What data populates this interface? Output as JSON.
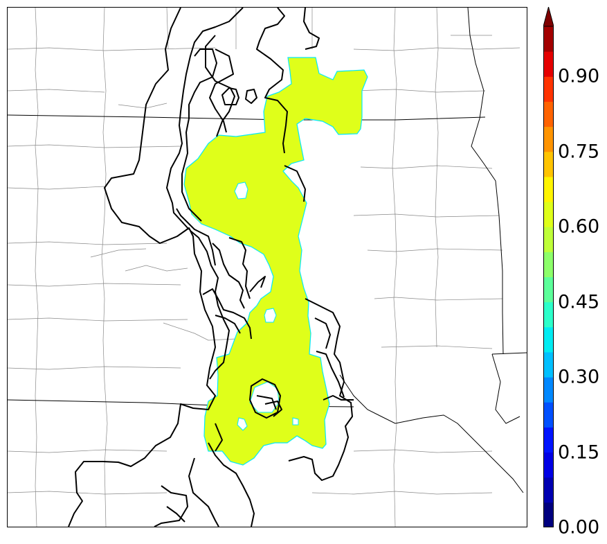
{
  "map": {
    "fill_color": "#dfff1a",
    "fill_edge_color": "#00e8ff",
    "contour_color": "#000000",
    "boundary_color": "#888888",
    "state_line_color": "#000000"
  },
  "colorbar": {
    "extend": "max",
    "min": 0.0,
    "max": 1.0,
    "step": 0.05,
    "colors": [
      "#00007f",
      "#0000b2",
      "#0000e5",
      "#0014ff",
      "#0050ff",
      "#0088ff",
      "#00c0ff",
      "#00ecf2",
      "#2cffca",
      "#5cff9a",
      "#8dff6a",
      "#bfff39",
      "#dfff1a",
      "#fff500",
      "#ffc400",
      "#ff9400",
      "#ff6300",
      "#ff3300",
      "#e50000",
      "#a30000",
      "#7f0000"
    ],
    "tick_labels": [
      "0.00",
      "0.15",
      "0.30",
      "0.45",
      "0.60",
      "0.75",
      "0.90"
    ]
  }
}
